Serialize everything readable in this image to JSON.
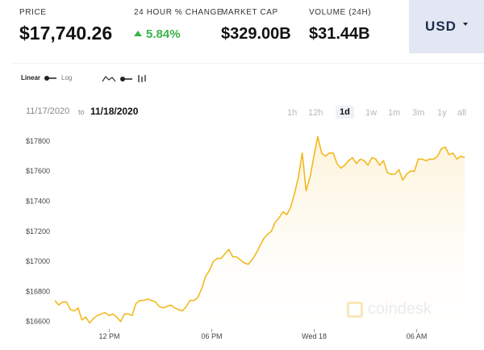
{
  "header": {
    "price": {
      "label": "PRICE",
      "value": "$17,740.26"
    },
    "change": {
      "label": "24 HOUR % CHANGE",
      "value": "5.84%"
    },
    "market_cap": {
      "label": "MARKET CAP",
      "value": "$329.00B"
    },
    "volume": {
      "label": "VOLUME (24H)",
      "value": "$31.44B"
    },
    "currency": "USD"
  },
  "controls": {
    "linear": "Linear",
    "log": "Log"
  },
  "range": {
    "from": "11/17/2020",
    "to_word": "to",
    "to": "11/18/2020"
  },
  "timeframes": [
    "1h",
    "12h",
    "1d",
    "1w",
    "1m",
    "3m",
    "1y",
    "all"
  ],
  "active_timeframe": "1d",
  "watermark": "coindesk",
  "colors": {
    "line": "#f2b91e",
    "fill": "#fdf3d9",
    "accent_up": "#3bb44a",
    "currency_bg": "#e2e7f3"
  },
  "chart_data": {
    "type": "area",
    "title": "",
    "xlabel": "",
    "ylabel": "",
    "ylim": [
      16550,
      17880
    ],
    "yticks": [
      16600,
      16800,
      17000,
      17200,
      17400,
      17600,
      17800
    ],
    "ytick_labels": [
      "$16600",
      "$16800",
      "$17000",
      "$17200",
      "$17400",
      "$17600",
      "$17800"
    ],
    "xticks": [
      {
        "t": 0.133,
        "label": "12 PM"
      },
      {
        "t": 0.383,
        "label": "06 PM"
      },
      {
        "t": 0.633,
        "label": "Wed 18"
      },
      {
        "t": 0.883,
        "label": "06 AM"
      }
    ],
    "series": [
      {
        "values": [
          16740,
          16710,
          16730,
          16730,
          16680,
          16670,
          16690,
          16610,
          16630,
          16590,
          16620,
          16640,
          16650,
          16660,
          16640,
          16650,
          16630,
          16600,
          16650,
          16650,
          16640,
          16720,
          16740,
          16740,
          16750,
          16740,
          16730,
          16700,
          16690,
          16700,
          16710,
          16690,
          16680,
          16670,
          16700,
          16740,
          16740,
          16760,
          16820,
          16900,
          16940,
          17000,
          17020,
          17020,
          17050,
          17080,
          17030,
          17030,
          17010,
          16990,
          16980,
          17010,
          17050,
          17100,
          17150,
          17180,
          17200,
          17260,
          17290,
          17330,
          17310,
          17360,
          17450,
          17560,
          17720,
          17470,
          17560,
          17700,
          17830,
          17720,
          17700,
          17720,
          17720,
          17650,
          17620,
          17640,
          17670,
          17690,
          17650,
          17680,
          17670,
          17640,
          17690,
          17680,
          17640,
          17670,
          17590,
          17580,
          17580,
          17610,
          17540,
          17580,
          17600,
          17600,
          17680,
          17680,
          17670,
          17680,
          17680,
          17700,
          17750,
          17760,
          17710,
          17720,
          17680,
          17700,
          17690
        ]
      }
    ]
  }
}
